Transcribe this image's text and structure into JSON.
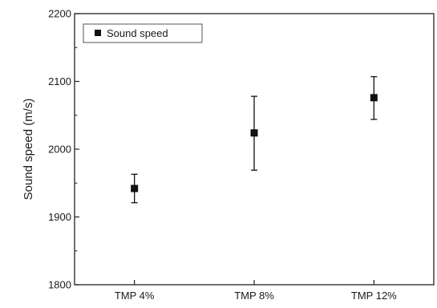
{
  "chart_data": {
    "type": "scatter",
    "title": "",
    "xlabel": "",
    "ylabel": "Sound speed (m/s)",
    "categories": [
      "TMP 4%",
      "TMP 8%",
      "TMP 12%"
    ],
    "ylim": [
      1800,
      2200
    ],
    "yticks": [
      1800,
      1900,
      2000,
      2100,
      2200
    ],
    "grid": false,
    "legend_position": "top-left",
    "series": [
      {
        "name": "Sound speed",
        "values": [
          1942,
          2024,
          2076
        ],
        "error_low": [
          1921,
          1969,
          2044
        ],
        "error_high": [
          1963,
          2078,
          2107
        ],
        "marker": "square",
        "color": "#111111"
      }
    ]
  }
}
